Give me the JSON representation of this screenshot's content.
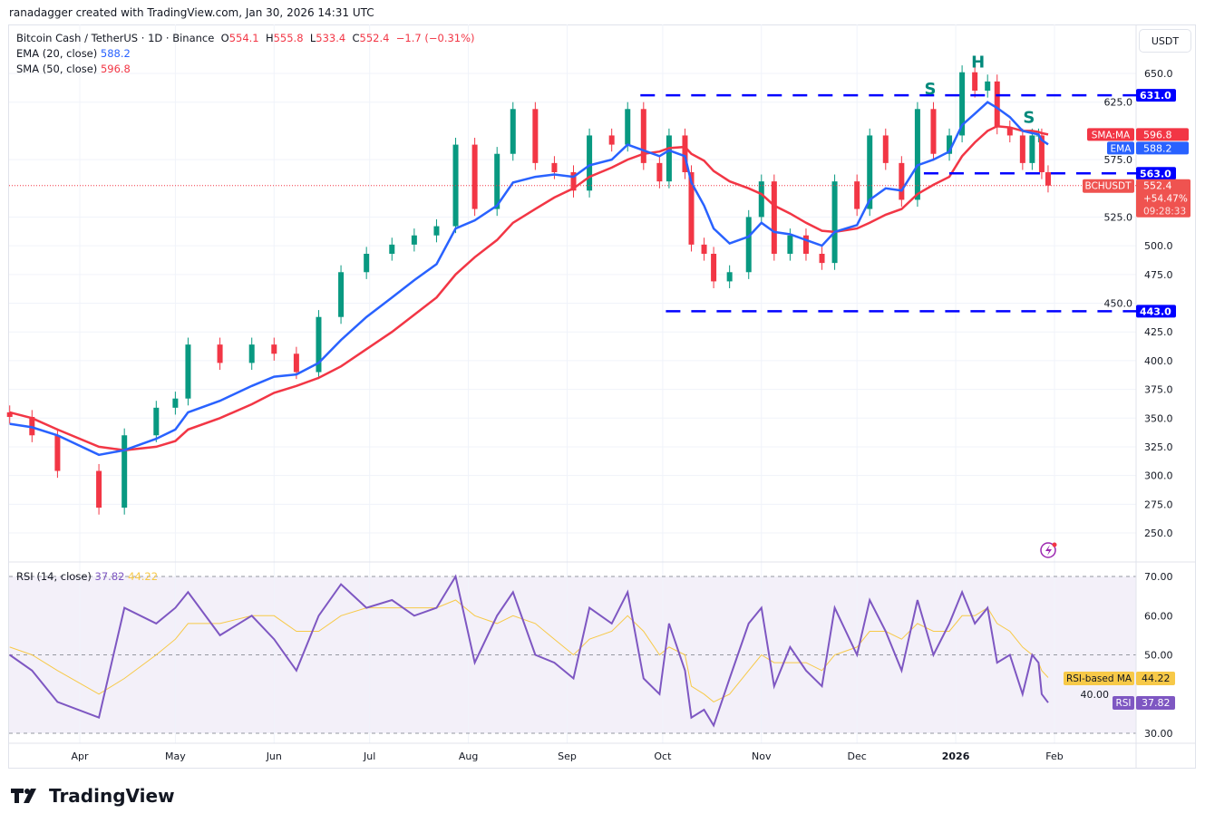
{
  "header": {
    "credit": "ranadagger created with TradingView.com, Jan 30, 2026 14:31 UTC",
    "symbol": "Bitcoin Cash / TetherUS · 1D · Binance",
    "o_label": "O",
    "o": "554.1",
    "h_label": "H",
    "h": "555.8",
    "l_label": "L",
    "l": "533.4",
    "c_label": "C",
    "c": "552.4",
    "change": "−1.7 (−0.31%)",
    "ema_label": "EMA (20, close)",
    "ema": "588.2",
    "sma_label": "SMA (50, close)",
    "sma": "596.8",
    "rsi_label": "RSI (14, close)",
    "rsi": "37.82",
    "rsi_ma": "44.22"
  },
  "currency": "USDT",
  "logo": "TradingView",
  "colors": {
    "up": "#089981",
    "down": "#f23645",
    "ema": "#2962ff",
    "sma": "#f23645",
    "rsi": "#7e57c2",
    "rsi_ma": "#f7c948",
    "level": "#0000ff",
    "pattern": "#00897b"
  },
  "chart_data": {
    "type": "candlestick",
    "price_axis": {
      "ticks": [
        "650.0",
        "625.0",
        "575.0",
        "525.0",
        "500.0",
        "475.0",
        "450.0",
        "425.0",
        "400.0",
        "375.0",
        "350.0",
        "325.0",
        "300.0",
        "275.0",
        "250.0"
      ],
      "ylim": [
        235,
        665
      ]
    },
    "time_axis": {
      "ticks": [
        {
          "label": "Apr",
          "date": "2025-04-01"
        },
        {
          "label": "May",
          "date": "2025-05-01"
        },
        {
          "label": "Jun",
          "date": "2025-06-01"
        },
        {
          "label": "Jul",
          "date": "2025-07-01"
        },
        {
          "label": "Aug",
          "date": "2025-08-01"
        },
        {
          "label": "Sep",
          "date": "2025-09-01"
        },
        {
          "label": "Oct",
          "date": "2025-10-01"
        },
        {
          "label": "Nov",
          "date": "2025-11-01"
        },
        {
          "label": "Dec",
          "date": "2025-12-01"
        },
        {
          "label": "2026",
          "date": "2026-01-01"
        },
        {
          "label": "Feb",
          "date": "2026-02-01"
        }
      ]
    },
    "dates": [
      "2025-03-10",
      "2025-03-17",
      "2025-03-25",
      "2025-04-07",
      "2025-04-15",
      "2025-04-25",
      "2025-05-01",
      "2025-05-05",
      "2025-05-15",
      "2025-05-25",
      "2025-06-01",
      "2025-06-08",
      "2025-06-15",
      "2025-06-22",
      "2025-06-30",
      "2025-07-08",
      "2025-07-15",
      "2025-07-22",
      "2025-07-28",
      "2025-08-03",
      "2025-08-10",
      "2025-08-15",
      "2025-08-22",
      "2025-08-28",
      "2025-09-03",
      "2025-09-08",
      "2025-09-15",
      "2025-09-20",
      "2025-09-25",
      "2025-09-30",
      "2025-10-03",
      "2025-10-08",
      "2025-10-10",
      "2025-10-14",
      "2025-10-17",
      "2025-10-22",
      "2025-10-28",
      "2025-11-01",
      "2025-11-05",
      "2025-11-10",
      "2025-11-15",
      "2025-11-20",
      "2025-11-24",
      "2025-12-01",
      "2025-12-05",
      "2025-12-10",
      "2025-12-15",
      "2025-12-20",
      "2025-12-25",
      "2025-12-30",
      "2026-01-03",
      "2026-01-07",
      "2026-01-11",
      "2026-01-14",
      "2026-01-18",
      "2026-01-22",
      "2026-01-25",
      "2026-01-27",
      "2026-01-28",
      "2026-01-30"
    ],
    "close": [
      351,
      335,
      304,
      272,
      335,
      359,
      367,
      414,
      398,
      414,
      406,
      390,
      438,
      477,
      493,
      501,
      509,
      517,
      588,
      532,
      580,
      619,
      572,
      564,
      548,
      596,
      588,
      619,
      572,
      556,
      596,
      564,
      501,
      493,
      469,
      477,
      525,
      556,
      493,
      509,
      493,
      485,
      556,
      532,
      596,
      572,
      540,
      619,
      580,
      596,
      651,
      635,
      643,
      603,
      596,
      572,
      596,
      596,
      564,
      552.4
    ],
    "ema": [
      345,
      342,
      335,
      318,
      322,
      332,
      340,
      355,
      365,
      378,
      386,
      388,
      398,
      418,
      438,
      455,
      470,
      484,
      515,
      522,
      535,
      555,
      560,
      562,
      560,
      570,
      575,
      588,
      583,
      578,
      583,
      578,
      555,
      535,
      515,
      502,
      508,
      520,
      512,
      510,
      505,
      500,
      512,
      518,
      540,
      550,
      548,
      570,
      575,
      582,
      605,
      615,
      625,
      620,
      612,
      600,
      598,
      597,
      592,
      588.2
    ],
    "sma": [
      355,
      350,
      340,
      325,
      322,
      325,
      330,
      340,
      350,
      362,
      372,
      378,
      385,
      395,
      410,
      425,
      440,
      455,
      475,
      490,
      505,
      520,
      532,
      542,
      550,
      560,
      568,
      575,
      580,
      582,
      585,
      586,
      580,
      574,
      565,
      556,
      550,
      545,
      535,
      528,
      520,
      513,
      512,
      515,
      520,
      527,
      532,
      545,
      553,
      560,
      578,
      590,
      600,
      604,
      603,
      600,
      600,
      599,
      598,
      596.8
    ],
    "rsi": [
      50,
      46,
      38,
      34,
      62,
      58,
      62,
      66,
      55,
      60,
      54,
      46,
      60,
      68,
      62,
      64,
      60,
      62,
      70,
      48,
      60,
      66,
      50,
      48,
      44,
      62,
      58,
      66,
      44,
      40,
      58,
      46,
      34,
      36,
      32,
      44,
      58,
      62,
      42,
      52,
      46,
      42,
      62,
      50,
      64,
      56,
      46,
      64,
      50,
      58,
      66,
      58,
      62,
      48,
      50,
      40,
      50,
      48,
      40,
      37.82
    ],
    "rsi_ma": [
      52,
      50,
      46,
      40,
      44,
      50,
      54,
      58,
      58,
      60,
      60,
      56,
      56,
      60,
      62,
      62,
      62,
      62,
      64,
      60,
      58,
      60,
      58,
      54,
      50,
      54,
      56,
      60,
      56,
      50,
      52,
      50,
      42,
      40,
      38,
      40,
      46,
      50,
      48,
      48,
      48,
      46,
      50,
      52,
      56,
      56,
      54,
      58,
      56,
      56,
      60,
      60,
      62,
      58,
      56,
      52,
      50,
      48,
      46,
      44.22
    ],
    "rsi_axis": {
      "ticks": [
        "70.00",
        "60.00",
        "50.00",
        "40.00",
        "30.00"
      ],
      "ylim": [
        30,
        70
      ]
    },
    "levels": [
      {
        "value": 631.0,
        "label": "631.0",
        "from": "2025-09-24"
      },
      {
        "value": 563.0,
        "label": "563.0",
        "from": "2025-12-22"
      },
      {
        "value": 443.0,
        "label": "443.0",
        "from": "2025-10-02"
      }
    ],
    "annotations": [
      {
        "text": "S",
        "date": "2025-12-24",
        "price": 632
      },
      {
        "text": "H",
        "date": "2026-01-08",
        "price": 655
      },
      {
        "text": "S",
        "date": "2026-01-24",
        "price": 607
      }
    ],
    "price_labels": {
      "sma_tag": "SMA:MA",
      "sma": "596.8",
      "ema_tag": "EMA",
      "ema": "588.2",
      "symbol_tag": "BCHUSDT",
      "last": "552.4",
      "pct": "+54.47%",
      "countdown": "09:28:33"
    },
    "rsi_labels": {
      "ma_tag": "RSI-based MA",
      "ma": "44.22",
      "rsi_tag": "RSI",
      "rsi": "37.82"
    }
  }
}
